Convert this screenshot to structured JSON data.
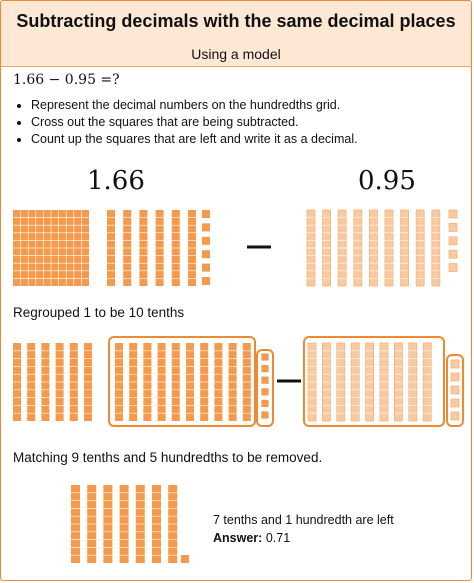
{
  "title": "Subtracting decimals with the same decimal places",
  "subtitle": "Using a model",
  "equation": "1.66 − 0.95 =?",
  "steps": [
    "Represent the decimal numbers on the hundredths grid.",
    "Cross out the squares that are being subtracted.",
    "Count up the squares that are left and write it as a decimal."
  ],
  "minuend": "1.66",
  "subtrahend": "0.95",
  "section_regroup": "Regrouped 1 to be 10 tenths",
  "section_match": "Matching 9 tenths and 5 hundredths to be removed.",
  "result_line": "7 tenths and 1 hundredth are left",
  "answer_label": "Answer:",
  "answer_value": "0.71",
  "colors": {
    "accent": "#f08a30",
    "fill": "#f59a4c",
    "light_fill": "#f9c9a0",
    "header_bg": "#fde8d6"
  }
}
